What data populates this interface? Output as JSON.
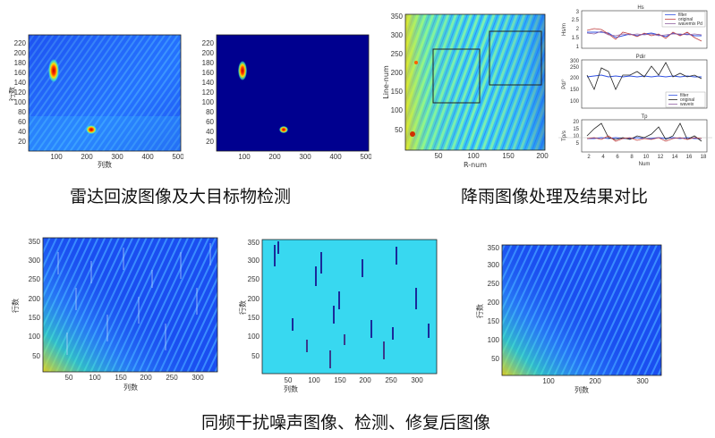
{
  "captions": {
    "top_left": "雷达回波图像及大目标物检测",
    "top_right": "降雨图像处理及结果对比",
    "bottom": "同频干扰噪声图像、检测、修复后图像"
  },
  "panels": {
    "radar_echo": {
      "xlabel": "列数",
      "ylabel": "行数",
      "xticks": [
        "100",
        "200",
        "300",
        "400",
        "500"
      ],
      "yticks": [
        "20",
        "40",
        "60",
        "80",
        "100",
        "120",
        "140",
        "160",
        "180",
        "200",
        "220"
      ]
    },
    "radar_detect": {
      "xlabel": "",
      "ylabel": "",
      "xticks": [
        "100",
        "200",
        "300",
        "400",
        "500"
      ],
      "yticks": [
        "20",
        "40",
        "60",
        "80",
        "100",
        "120",
        "140",
        "160",
        "180",
        "200",
        "220"
      ]
    },
    "rain_image": {
      "xlabel": "R-num",
      "ylabel": "Line-num",
      "xticks": [
        "50",
        "100",
        "150",
        "200"
      ],
      "yticks": [
        "50",
        "100",
        "150",
        "200",
        "250",
        "300",
        "350"
      ]
    },
    "rain_hs": {
      "title": "Hs",
      "ylabel": "Hs/m",
      "yticks": [
        "1",
        "1.5",
        "2",
        "2.5",
        "3"
      ],
      "legend": [
        "filter",
        "original",
        "wavemix Pd"
      ]
    },
    "rain_pdir": {
      "title": "Pdir",
      "ylabel": "Pd/°",
      "yticks": [
        "100",
        "150",
        "200",
        "250",
        "300"
      ],
      "legend": [
        "filter",
        "original",
        "waveix"
      ]
    },
    "rain_tp": {
      "title": "Tp",
      "ylabel": "Tp/s",
      "xlabel": "Num",
      "yticks": [
        "5",
        "10",
        "15",
        "20"
      ],
      "xticks": [
        "2",
        "4",
        "6",
        "8",
        "10",
        "12",
        "14",
        "16",
        "18"
      ]
    },
    "noise_image": {
      "xlabel": "列数",
      "ylabel": "行数",
      "xticks": [
        "50",
        "100",
        "150",
        "200",
        "250",
        "300"
      ],
      "yticks": [
        "50",
        "100",
        "150",
        "200",
        "250",
        "300",
        "350"
      ]
    },
    "noise_detect": {
      "xlabel": "列数",
      "ylabel": "行数",
      "xticks": [
        "50",
        "100",
        "150",
        "200",
        "250",
        "300"
      ],
      "yticks": [
        "50",
        "100",
        "150",
        "200",
        "250",
        "300",
        "350"
      ]
    },
    "noise_repaired": {
      "xlabel": "列数",
      "ylabel": "行数",
      "xticks": [
        "100",
        "200",
        "300"
      ],
      "yticks": [
        "50",
        "100",
        "150",
        "200",
        "250",
        "300",
        "350"
      ]
    }
  },
  "colors": {
    "jet_dark": "#00008f",
    "jet_blue": "#0050ff",
    "jet_cyan": "#00e0ff",
    "jet_yellow": "#ffe000",
    "jet_red": "#c00000"
  }
}
